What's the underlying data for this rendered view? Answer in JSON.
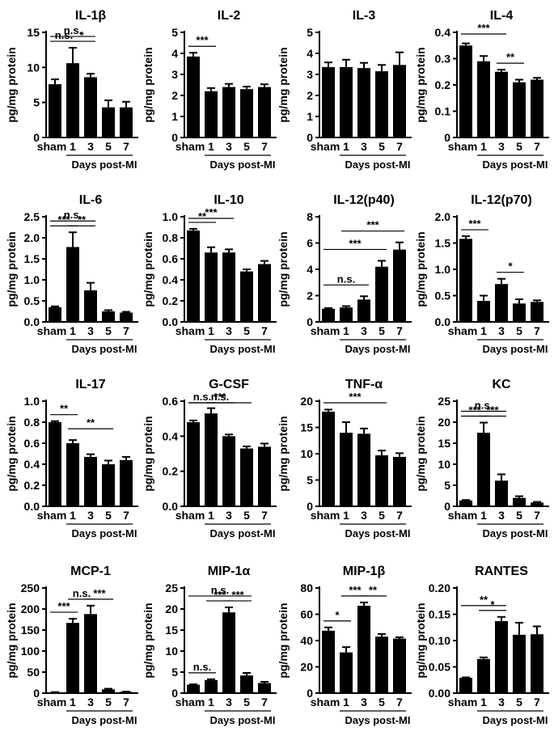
{
  "figure": {
    "categories": [
      "sham",
      "1",
      "3",
      "5",
      "7"
    ],
    "xlabel": "Days post-MI",
    "ylabel": "pg/mg protein"
  },
  "chart_data": [
    {
      "type": "bar",
      "title": "IL-1β",
      "categories": [
        "sham",
        "1",
        "3",
        "5",
        "7"
      ],
      "values": [
        7.6,
        10.6,
        8.6,
        4.3,
        4.3
      ],
      "errors": [
        0.7,
        2.2,
        0.5,
        1.0,
        0.8
      ],
      "ylim": [
        0,
        15
      ],
      "yticks": [
        "0",
        "5",
        "10",
        "15"
      ],
      "xlabel": "Days post-MI",
      "ylabel": "pg/mg protein",
      "annotations": [
        {
          "from": "sham",
          "to": "1",
          "text": "n.s."
        },
        {
          "from": "1",
          "to": "3",
          "text": "*"
        },
        {
          "from": "sham",
          "to": "3",
          "text": "n.s."
        }
      ]
    },
    {
      "type": "bar",
      "title": "IL-2",
      "categories": [
        "sham",
        "1",
        "3",
        "5",
        "7"
      ],
      "values": [
        3.85,
        2.2,
        2.4,
        2.3,
        2.4
      ],
      "errors": [
        0.18,
        0.15,
        0.15,
        0.12,
        0.13
      ],
      "ylim": [
        0,
        5
      ],
      "yticks": [
        "0",
        "1",
        "2",
        "3",
        "4",
        "5"
      ],
      "xlabel": "Days post-MI",
      "ylabel": "pg/mg protein",
      "annotations": [
        {
          "from": "sham",
          "to": "1",
          "text": "***"
        }
      ]
    },
    {
      "type": "bar",
      "title": "IL-3",
      "categories": [
        "sham",
        "1",
        "3",
        "5",
        "7"
      ],
      "values": [
        3.35,
        3.35,
        3.3,
        3.15,
        3.45
      ],
      "errors": [
        0.22,
        0.35,
        0.25,
        0.3,
        0.6
      ],
      "ylim": [
        0,
        5
      ],
      "yticks": [
        "0",
        "1",
        "2",
        "3",
        "4",
        "5"
      ],
      "xlabel": "Days post-MI",
      "ylabel": "pg/mg protein",
      "annotations": []
    },
    {
      "type": "bar",
      "title": "IL-4",
      "categories": [
        "sham",
        "1",
        "3",
        "5",
        "7"
      ],
      "values": [
        0.35,
        0.29,
        0.25,
        0.21,
        0.22
      ],
      "errors": [
        0.008,
        0.02,
        0.008,
        0.01,
        0.007
      ],
      "ylim": [
        0,
        0.4
      ],
      "yticks": [
        "0",
        "0.1",
        "0.2",
        "0.3",
        "0.4"
      ],
      "xlabel": "Days post-MI",
      "ylabel": "pg/mg protein",
      "annotations": [
        {
          "from": "sham",
          "to": "3",
          "text": "***"
        },
        {
          "from": "3",
          "to": "5",
          "text": "**"
        }
      ]
    },
    {
      "type": "bar",
      "title": "IL-6",
      "categories": [
        "sham",
        "1",
        "3",
        "5",
        "7"
      ],
      "values": [
        0.35,
        1.78,
        0.75,
        0.25,
        0.22
      ],
      "errors": [
        0.02,
        0.35,
        0.18,
        0.03,
        0.02
      ],
      "ylim": [
        0,
        2.5
      ],
      "yticks": [
        "0.0",
        "0.5",
        "1.0",
        "1.5",
        "2.0",
        "2.5"
      ],
      "xlabel": "Days post-MI",
      "ylabel": "pg/mg protein",
      "annotations": [
        {
          "from": "sham",
          "to": "1",
          "text": "***"
        },
        {
          "from": "1",
          "to": "3",
          "text": "**"
        },
        {
          "from": "sham",
          "to": "3",
          "text": "n.s."
        }
      ]
    },
    {
      "type": "bar",
      "title": "IL-10",
      "categories": [
        "sham",
        "1",
        "3",
        "5",
        "7"
      ],
      "values": [
        0.87,
        0.66,
        0.66,
        0.48,
        0.55
      ],
      "errors": [
        0.015,
        0.05,
        0.03,
        0.02,
        0.03
      ],
      "ylim": [
        0,
        1.0
      ],
      "yticks": [
        "0.0",
        "0.2",
        "0.4",
        "0.6",
        "0.8",
        "1.0"
      ],
      "xlabel": "Days post-MI",
      "ylabel": "pg/mg protein",
      "annotations": [
        {
          "from": "sham",
          "to": "1",
          "text": "**"
        },
        {
          "from": "sham",
          "to": "3",
          "text": "***"
        }
      ]
    },
    {
      "type": "bar",
      "title": "IL-12(p40)",
      "categories": [
        "sham",
        "1",
        "3",
        "5",
        "7"
      ],
      "values": [
        1.0,
        1.1,
        1.7,
        4.2,
        5.5
      ],
      "errors": [
        0.05,
        0.1,
        0.25,
        0.45,
        0.55
      ],
      "ylim": [
        0,
        8
      ],
      "yticks": [
        "0",
        "2",
        "4",
        "6",
        "8"
      ],
      "xlabel": "Days post-MI",
      "ylabel": "pg/mg protein",
      "annotations": [
        {
          "from": "sham",
          "to": "3",
          "text": "n.s."
        },
        {
          "from": "sham",
          "to": "5",
          "text": "***"
        },
        {
          "from": "1",
          "to": "7",
          "text": "***"
        }
      ]
    },
    {
      "type": "bar",
      "title": "IL-12(p70)",
      "categories": [
        "sham",
        "1",
        "3",
        "5",
        "7"
      ],
      "values": [
        1.58,
        0.4,
        0.72,
        0.35,
        0.38
      ],
      "errors": [
        0.05,
        0.1,
        0.1,
        0.08,
        0.03
      ],
      "ylim": [
        0,
        2.0
      ],
      "yticks": [
        "0.0",
        "0.5",
        "1.0",
        "1.5",
        "2.0"
      ],
      "xlabel": "Days post-MI",
      "ylabel": "pg/mg protein",
      "annotations": [
        {
          "from": "sham",
          "to": "1",
          "text": "***"
        },
        {
          "from": "3",
          "to": "5",
          "text": "*"
        }
      ]
    },
    {
      "type": "bar",
      "title": "IL-17",
      "categories": [
        "sham",
        "1",
        "3",
        "5",
        "7"
      ],
      "values": [
        0.8,
        0.6,
        0.47,
        0.4,
        0.44
      ],
      "errors": [
        0.01,
        0.03,
        0.025,
        0.035,
        0.03
      ],
      "ylim": [
        0,
        1.0
      ],
      "yticks": [
        "0.0",
        "0.2",
        "0.4",
        "0.6",
        "0.8",
        "1.0"
      ],
      "xlabel": "Days post-MI",
      "ylabel": "pg/mg protein",
      "annotations": [
        {
          "from": "sham",
          "to": "1",
          "text": "**"
        },
        {
          "from": "1",
          "to": "5",
          "text": "**"
        }
      ]
    },
    {
      "type": "bar",
      "title": "G-CSF",
      "categories": [
        "sham",
        "1",
        "3",
        "5",
        "7"
      ],
      "values": [
        0.48,
        0.53,
        0.4,
        0.33,
        0.34
      ],
      "errors": [
        0.01,
        0.03,
        0.01,
        0.012,
        0.018
      ],
      "ylim": [
        0,
        0.6
      ],
      "yticks": [
        "0.0",
        "0.2",
        "0.4",
        "0.6"
      ],
      "xlabel": "Days post-MI",
      "ylabel": "pg/mg protein",
      "annotations": [
        {
          "from": "sham",
          "to": "1",
          "text": "n.s."
        },
        {
          "from": "1",
          "to": "3",
          "text": "***"
        },
        {
          "from": "sham",
          "to": "5",
          "text": "n.s."
        }
      ]
    },
    {
      "type": "bar",
      "title": "TNF-α",
      "categories": [
        "sham",
        "1",
        "3",
        "5",
        "7"
      ],
      "values": [
        18.0,
        14.0,
        13.8,
        9.7,
        9.4
      ],
      "errors": [
        0.4,
        2.0,
        1.0,
        0.9,
        0.7
      ],
      "ylim": [
        0,
        20
      ],
      "yticks": [
        "0",
        "5",
        "10",
        "15",
        "20"
      ],
      "xlabel": "Days post-MI",
      "ylabel": "pg/mg protein",
      "annotations": [
        {
          "from": "sham",
          "to": "5",
          "text": "***"
        }
      ]
    },
    {
      "type": "bar",
      "title": "KC",
      "categories": [
        "sham",
        "1",
        "3",
        "5",
        "7"
      ],
      "values": [
        1.4,
        17.5,
        6.1,
        2.0,
        0.9
      ],
      "errors": [
        0.1,
        2.4,
        1.5,
        0.4,
        0.15
      ],
      "ylim": [
        0,
        25
      ],
      "yticks": [
        "0",
        "5",
        "10",
        "15",
        "20",
        "25"
      ],
      "xlabel": "Days post-MI",
      "ylabel": "pg/mg protein",
      "annotations": [
        {
          "from": "sham",
          "to": "1",
          "text": "***"
        },
        {
          "from": "1",
          "to": "3",
          "text": "***"
        },
        {
          "from": "sham",
          "to": "3",
          "text": "n.s."
        }
      ]
    },
    {
      "type": "bar",
      "title": "MCP-1",
      "categories": [
        "sham",
        "1",
        "3",
        "5",
        "7"
      ],
      "values": [
        2,
        167,
        188,
        9,
        3
      ],
      "errors": [
        0.5,
        10,
        20,
        1.5,
        0.5
      ],
      "ylim": [
        0,
        250
      ],
      "yticks": [
        "0",
        "50",
        "100",
        "150",
        "200",
        "250"
      ],
      "xlabel": "Days post-MI",
      "ylabel": "pg/mg protein",
      "annotations": [
        {
          "from": "sham",
          "to": "1",
          "text": "***"
        },
        {
          "from": "1",
          "to": "3",
          "text": "n.s."
        },
        {
          "from": "3",
          "to": "5",
          "text": "***"
        }
      ]
    },
    {
      "type": "bar",
      "title": "MIP-1α",
      "categories": [
        "sham",
        "1",
        "3",
        "5",
        "7"
      ],
      "values": [
        2.0,
        3.1,
        19.2,
        4.2,
        2.4
      ],
      "errors": [
        0.1,
        0.2,
        1.2,
        0.6,
        0.3
      ],
      "ylim": [
        0,
        25
      ],
      "yticks": [
        "0",
        "5",
        "10",
        "15",
        "20",
        "25"
      ],
      "xlabel": "Days post-MI",
      "ylabel": "pg/mg protein",
      "annotations": [
        {
          "from": "sham",
          "to": "1",
          "text": "n.s."
        },
        {
          "from": "1",
          "to": "3",
          "text": "***"
        },
        {
          "from": "3",
          "to": "5",
          "text": "***"
        },
        {
          "from": "sham",
          "to": "5",
          "text": "n.s."
        }
      ]
    },
    {
      "type": "bar",
      "title": "MIP-1β",
      "categories": [
        "sham",
        "1",
        "3",
        "5",
        "7"
      ],
      "values": [
        47.5,
        31,
        66.5,
        43,
        41.5
      ],
      "errors": [
        2.5,
        4,
        2.5,
        2,
        1
      ],
      "ylim": [
        0,
        80
      ],
      "yticks": [
        "0",
        "20",
        "40",
        "60",
        "80"
      ],
      "xlabel": "Days post-MI",
      "ylabel": "pg/mg protein",
      "annotations": [
        {
          "from": "sham",
          "to": "1",
          "text": "*"
        },
        {
          "from": "1",
          "to": "3",
          "text": "***"
        },
        {
          "from": "3",
          "to": "5",
          "text": "**"
        }
      ]
    },
    {
      "type": "bar",
      "title": "RANTES",
      "categories": [
        "sham",
        "1",
        "3",
        "5",
        "7"
      ],
      "values": [
        0.029,
        0.065,
        0.137,
        0.111,
        0.112
      ],
      "errors": [
        0.001,
        0.003,
        0.008,
        0.023,
        0.015
      ],
      "ylim": [
        0,
        0.2
      ],
      "yticks": [
        "0.00",
        "0.05",
        "0.10",
        "0.15",
        "0.20"
      ],
      "xlabel": "Days post-MI",
      "ylabel": "pg/mg protein",
      "annotations": [
        {
          "from": "sham",
          "to": "3",
          "text": "**"
        },
        {
          "from": "1",
          "to": "3",
          "text": "*"
        }
      ]
    }
  ]
}
